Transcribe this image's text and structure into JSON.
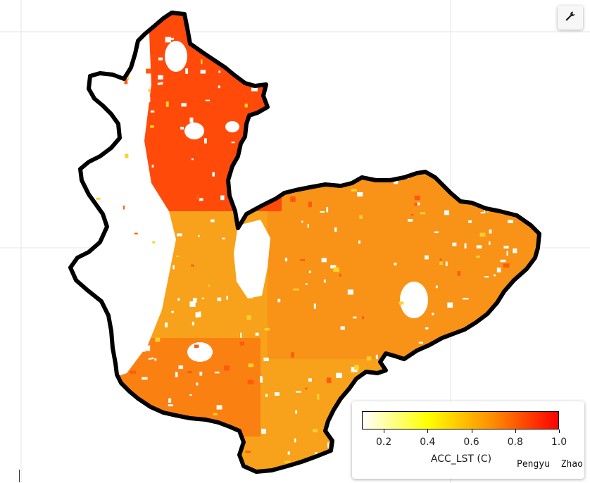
{
  "map": {
    "fill_colors": {
      "outline": "#000000",
      "land_base": "#f7a21a",
      "north_hot": "#ff4a0a",
      "background": "#ffffff"
    }
  },
  "toolbar": {
    "settings_icon": "wrench-icon"
  },
  "legend": {
    "title": "ACC_LST (C)",
    "colormap": [
      "#ffffff",
      "#ffff00",
      "#ff8c00",
      "#ff0000"
    ],
    "ticks": [
      "0.2",
      "0.4",
      "0.6",
      "0.8",
      "1.0"
    ],
    "min": 0.1,
    "max": 1.0,
    "author": "Pengyu  Zhao"
  }
}
